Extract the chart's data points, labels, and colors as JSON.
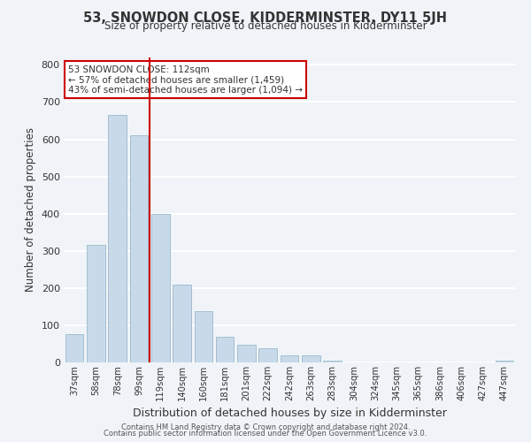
{
  "title": "53, SNOWDON CLOSE, KIDDERMINSTER, DY11 5JH",
  "subtitle": "Size of property relative to detached houses in Kidderminster",
  "xlabel": "Distribution of detached houses by size in Kidderminster",
  "ylabel": "Number of detached properties",
  "bar_labels": [
    "37sqm",
    "58sqm",
    "78sqm",
    "99sqm",
    "119sqm",
    "140sqm",
    "160sqm",
    "181sqm",
    "201sqm",
    "222sqm",
    "242sqm",
    "263sqm",
    "283sqm",
    "304sqm",
    "324sqm",
    "345sqm",
    "365sqm",
    "386sqm",
    "406sqm",
    "427sqm",
    "447sqm"
  ],
  "bar_values": [
    75,
    315,
    665,
    610,
    400,
    210,
    138,
    68,
    47,
    37,
    20,
    18,
    5,
    0,
    0,
    0,
    0,
    0,
    0,
    0,
    5
  ],
  "bar_color": "#c8daea",
  "bar_edge_color": "#9ab8cc",
  "marker_bin_index": 3,
  "marker_color": "#cc0000",
  "annotation_title": "53 SNOWDON CLOSE: 112sqm",
  "annotation_line1": "← 57% of detached houses are smaller (1,459)",
  "annotation_line2": "43% of semi-detached houses are larger (1,094) →",
  "annotation_box_color": "#ffffff",
  "annotation_box_edge": "#cc0000",
  "ylim": [
    0,
    820
  ],
  "yticks": [
    0,
    100,
    200,
    300,
    400,
    500,
    600,
    700,
    800
  ],
  "footer_line1": "Contains HM Land Registry data © Crown copyright and database right 2024.",
  "footer_line2": "Contains public sector information licensed under the Open Government Licence v3.0.",
  "bg_color": "#f0f4f8",
  "grid_color": "#ffffff",
  "title_fontsize": 10.5,
  "subtitle_fontsize": 8.5
}
